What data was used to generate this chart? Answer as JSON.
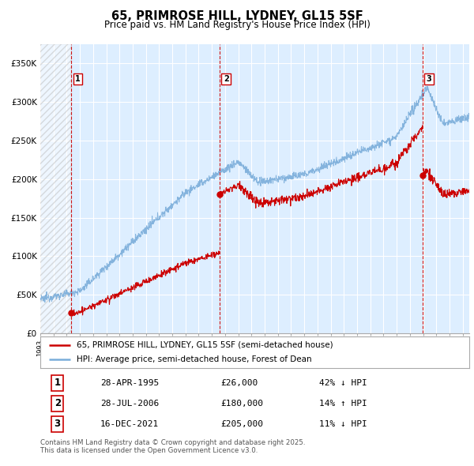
{
  "title": "65, PRIMROSE HILL, LYDNEY, GL15 5SF",
  "subtitle": "Price paid vs. HM Land Registry's House Price Index (HPI)",
  "legend_property": "65, PRIMROSE HILL, LYDNEY, GL15 5SF (semi-detached house)",
  "legend_hpi": "HPI: Average price, semi-detached house, Forest of Dean",
  "sale_date1": "28-APR-1995",
  "sale_price1": "£26,000",
  "sale_hpi1": "42% ↓ HPI",
  "sale_date2": "28-JUL-2006",
  "sale_price2": "£180,000",
  "sale_hpi2": "14% ↑ HPI",
  "sale_date3": "16-DEC-2021",
  "sale_price3": "£205,000",
  "sale_hpi3": "11% ↓ HPI",
  "footnote": "Contains HM Land Registry data © Crown copyright and database right 2025.\nThis data is licensed under the Open Government Licence v3.0.",
  "ylim": [
    0,
    375000
  ],
  "yticks": [
    0,
    50000,
    100000,
    150000,
    200000,
    250000,
    300000,
    350000
  ],
  "ytick_labels": [
    "£0",
    "£50K",
    "£100K",
    "£150K",
    "£200K",
    "£250K",
    "£300K",
    "£350K"
  ],
  "property_color": "#cc0000",
  "hpi_color": "#7aadda",
  "vline_color": "#cc0000",
  "sale1_x": 1995.33,
  "sale1_y": 26000,
  "sale2_x": 2006.58,
  "sale2_y": 180000,
  "sale3_x": 2021.96,
  "sale3_y": 205000,
  "bg_color": "#ddeeff",
  "hatch_end_x": 1995.33,
  "xlim_left": 1993.0,
  "xlim_right": 2025.5
}
